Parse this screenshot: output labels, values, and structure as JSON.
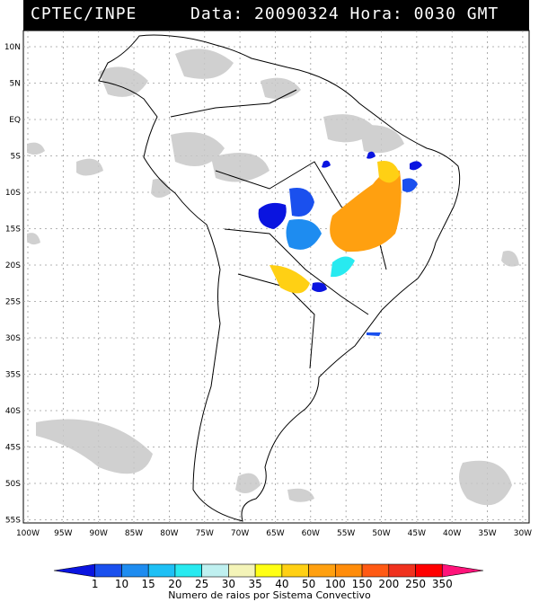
{
  "header": {
    "source": "CPTEC/INPE",
    "datetime": "Data: 20090324 Hora: 0030 GMT"
  },
  "map": {
    "lat_labels": [
      "10N",
      "5N",
      "EQ",
      "5S",
      "10S",
      "15S",
      "20S",
      "25S",
      "30S",
      "35S",
      "40S",
      "45S",
      "50S",
      "55S"
    ],
    "lon_labels": [
      "100W",
      "95W",
      "90W",
      "85W",
      "80W",
      "75W",
      "70W",
      "65W",
      "60W",
      "55W",
      "50W",
      "45W",
      "40W",
      "35W",
      "30W"
    ]
  },
  "colorbar": {
    "title": "Numero de raios por Sistema Convectivo",
    "ticks": [
      "1",
      "10",
      "15",
      "20",
      "25",
      "30",
      "35",
      "40",
      "50",
      "100",
      "150",
      "200",
      "250",
      "350"
    ],
    "colors": [
      "#0a14e0",
      "#1a50ee",
      "#1e8cf0",
      "#1ec0f5",
      "#28eaf0",
      "#bff0f0",
      "#f4f4b8",
      "#ffff14",
      "#ffd014",
      "#ffa010",
      "#ff8c0a",
      "#ff5a14",
      "#f0321e",
      "#ff0000",
      "#ff147a"
    ]
  },
  "legend_colors": {
    "cloud": "#bdbdbd",
    "blue": "#1a50ee",
    "midblue": "#1e8cf0",
    "cyan": "#28eaf0",
    "orange": "#ffa010",
    "amber": "#ffd014"
  }
}
